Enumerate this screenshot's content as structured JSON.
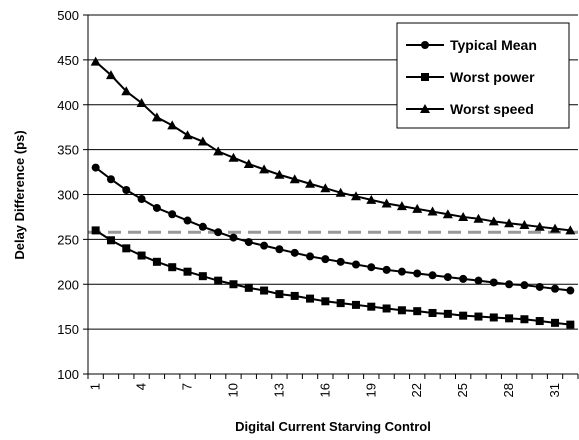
{
  "chart_data": {
    "type": "line",
    "title": "",
    "xlabel": "Digital Current Starving Control",
    "ylabel": "Delay Difference (ps)",
    "x": [
      1,
      2,
      3,
      4,
      5,
      6,
      7,
      8,
      9,
      10,
      11,
      12,
      13,
      14,
      15,
      16,
      17,
      18,
      19,
      20,
      21,
      22,
      23,
      24,
      25,
      26,
      27,
      28,
      29,
      30,
      31,
      32
    ],
    "xticks": [
      1,
      4,
      7,
      10,
      13,
      16,
      19,
      22,
      25,
      28,
      31
    ],
    "ylim": [
      100,
      500
    ],
    "yticks": [
      100,
      150,
      200,
      250,
      300,
      350,
      400,
      450,
      500
    ],
    "grid": "horizontal",
    "legend_position": "top-right",
    "series": [
      {
        "name": "Typical Mean",
        "marker": "circle",
        "color": "#000000",
        "values": [
          330,
          317,
          305,
          295,
          285,
          278,
          271,
          264,
          258,
          252,
          247,
          243,
          239,
          235,
          231,
          228,
          225,
          222,
          219,
          216,
          214,
          212,
          210,
          208,
          206,
          204,
          202,
          200,
          199,
          197,
          195,
          193
        ]
      },
      {
        "name": "Worst power",
        "marker": "square",
        "color": "#000000",
        "values": [
          260,
          249,
          240,
          232,
          225,
          219,
          214,
          209,
          204,
          200,
          196,
          193,
          189,
          187,
          184,
          181,
          179,
          177,
          175,
          173,
          171,
          170,
          168,
          167,
          165,
          164,
          163,
          162,
          161,
          159,
          157,
          155
        ]
      },
      {
        "name": "Worst speed",
        "marker": "triangle",
        "color": "#000000",
        "values": [
          448,
          433,
          415,
          402,
          386,
          377,
          366,
          359,
          348,
          341,
          334,
          328,
          322,
          317,
          312,
          307,
          302,
          298,
          294,
          290,
          287,
          284,
          281,
          278,
          275,
          273,
          270,
          268,
          266,
          264,
          262,
          260
        ]
      }
    ],
    "reference_line": {
      "value": 258,
      "style": "dashed",
      "color": "#999999"
    }
  }
}
